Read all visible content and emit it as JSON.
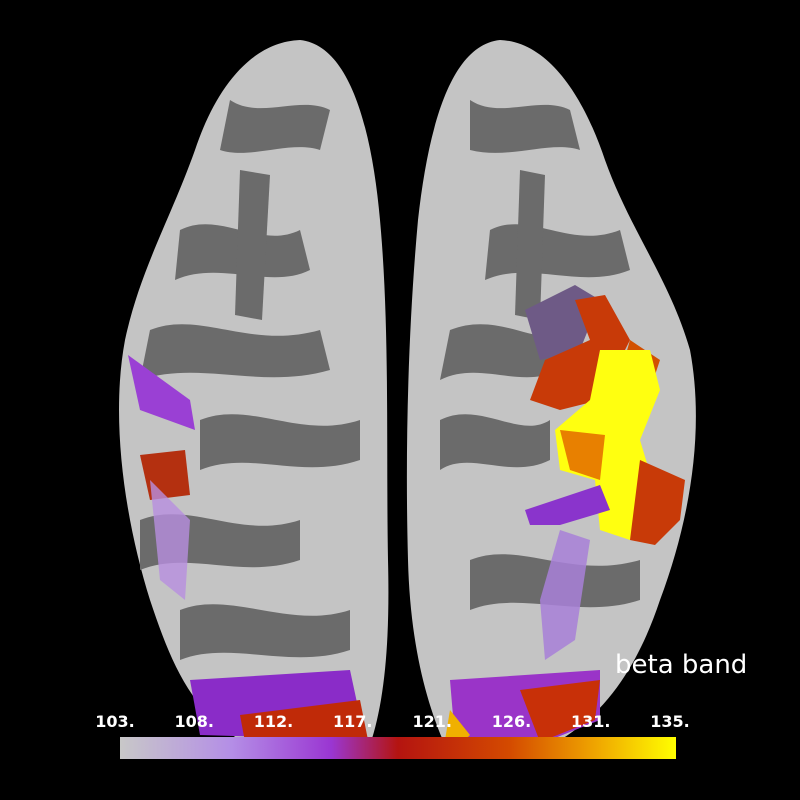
{
  "title": "beta band",
  "colorbar": {
    "range": [
      103,
      135
    ],
    "ticks": [
      {
        "value": 103,
        "label": "103."
      },
      {
        "value": 107.57,
        "label": "108."
      },
      {
        "value": 112.14,
        "label": "112."
      },
      {
        "value": 116.71,
        "label": "117."
      },
      {
        "value": 121.29,
        "label": "121."
      },
      {
        "value": 125.86,
        "label": "126."
      },
      {
        "value": 130.43,
        "label": "131."
      },
      {
        "value": 135,
        "label": "135."
      }
    ],
    "colormap": [
      {
        "offset": 0,
        "color": "#c8c8c8"
      },
      {
        "offset": 0.2,
        "color": "#b48ee6"
      },
      {
        "offset": 0.38,
        "color": "#9a36d2"
      },
      {
        "offset": 0.5,
        "color": "#b41410"
      },
      {
        "offset": 0.7,
        "color": "#d44a00"
      },
      {
        "offset": 0.86,
        "color": "#f0a800"
      },
      {
        "offset": 1,
        "color": "#ffff00"
      }
    ]
  }
}
